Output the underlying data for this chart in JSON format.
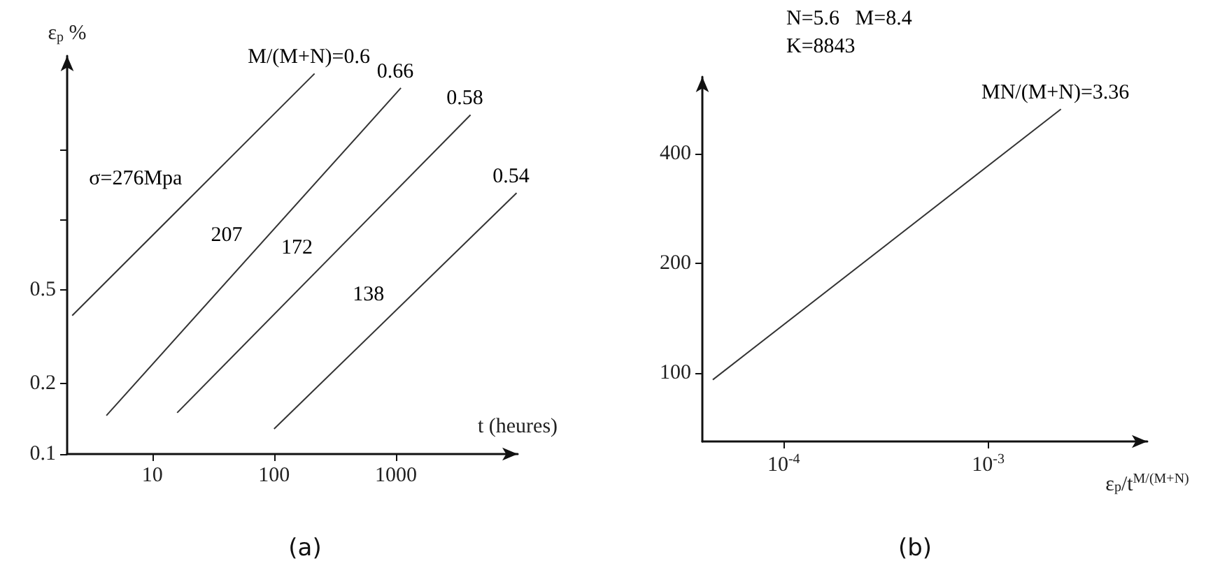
{
  "chart_data": [
    {
      "type": "line",
      "title": "(a)",
      "xlabel": "t (heures)",
      "ylabel": "ε$_{p}$ %",
      "log": "xy",
      "xlim": [
        2,
        10000
      ],
      "ylim": [
        0.1,
        5
      ],
      "xticks": [
        10,
        100,
        1000
      ],
      "yticks": [
        0.1,
        0.2,
        0.5,
        {
          "value": 1,
          "label": null
        },
        {
          "value": 2,
          "label": null
        }
      ],
      "series": [
        {
          "name": "σ=276Mpa",
          "color": "#333333",
          "x": [
            2.2,
            215
          ],
          "values": [
            0.39,
            4.2
          ]
        },
        {
          "name": "207",
          "color": "#333333",
          "x": [
            4.2,
            1100
          ],
          "values": [
            0.146,
            3.65
          ]
        },
        {
          "name": "172",
          "color": "#333333",
          "x": [
            16,
            4100
          ],
          "values": [
            0.15,
            2.8
          ]
        },
        {
          "name": "138",
          "color": "#333333",
          "x": [
            100,
            9800
          ],
          "values": [
            0.128,
            1.3
          ]
        }
      ],
      "annotations": [
        {
          "text": "M/(M+N)=0.6",
          "x": 215,
          "y": 4.2
        },
        {
          "text": "0.66",
          "x": 1100,
          "y": 3.65
        },
        {
          "text": "0.58",
          "x": 4100,
          "y": 2.8
        },
        {
          "text": "0.54",
          "x": 9800,
          "y": 1.3
        }
      ]
    },
    {
      "type": "line",
      "title": "(b)",
      "xlabel": "ε$_{p}$/t$^{M/(M+N)}$",
      "log": "xy",
      "xlim": [
        4e-05,
        0.006
      ],
      "ylim": [
        65,
        650
      ],
      "xticks": [
        {
          "value": 0.0001,
          "label": "10$^{-4}$"
        },
        {
          "value": 0.001,
          "label": "10$^{-3}$"
        }
      ],
      "yticks": [
        100,
        200,
        400
      ],
      "series": [
        {
          "color": "#333333",
          "x": [
            4.5e-05,
            0.00227
          ],
          "values": [
            96,
            530
          ]
        }
      ],
      "annotations": [
        "N=5.6   M=8.4",
        "K=8843",
        {
          "text": "MN/(M+N)=3.36",
          "x": 0.00227,
          "y": 530
        }
      ]
    }
  ]
}
